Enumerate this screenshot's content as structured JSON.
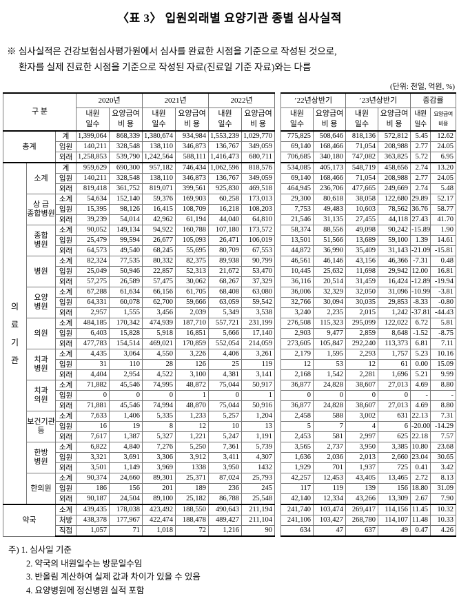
{
  "title": "〈표 3〉 입원외래별 요양기관 종별 심사실적",
  "note": {
    "line1": "※ 심사실적은 건강보험심사평가원에서 심사를 완료한 시점을 기준으로 작성된 것으로,",
    "line2": "환자를 실제 진료한 시점을 기준으로 작성된 자료(진료일 기준 자료)와는 다름"
  },
  "unit": "(단위: 천일, 억원, %)",
  "table": {
    "header": {
      "gubun": "구 분",
      "groups": [
        "2020년",
        "2021년",
        "2022년",
        "’22년상반기",
        "’23년상반기",
        "증감률"
      ],
      "sub_visit": "내원\n일수",
      "sub_cost": "요양급여\n비  용",
      "sub_visit_narrow": "내원\n일수",
      "sub_cost_narrow": "요양급여\n비용"
    },
    "mega_label": "의료기관",
    "groups": [
      {
        "name": "총계",
        "wide": true,
        "rows": [
          {
            "t": "계",
            "v": [
              "1,399,064",
              "868,339",
              "1,380,674",
              "934,984",
              "1,553,239",
              "1,029,770",
              "775,825",
              "508,646",
              "818,136",
              "572,812",
              "5.45",
              "12.62"
            ]
          },
          {
            "t": "입원",
            "v": [
              "140,211",
              "328,548",
              "138,110",
              "346,873",
              "136,767",
              "349,059",
              "69,140",
              "168,466",
              "71,054",
              "208,988",
              "2.77",
              "24.05"
            ]
          },
          {
            "t": "외래",
            "v": [
              "1,258,853",
              "539,790",
              "1,242,564",
              "588,111",
              "1,416,473",
              "680,711",
              "706,685",
              "340,180",
              "747,082",
              "363,825",
              "5.72",
              "6.95"
            ]
          }
        ]
      },
      {
        "name": "소계",
        "mega_start": true,
        "sec": true,
        "rows": [
          {
            "t": "계",
            "v": [
              "959,629",
              "690,300",
              "957,182",
              "746,434",
              "1,062,596",
              "818,576",
              "534,085",
              "405,173",
              "548,719",
              "458,656",
              "2.74",
              "13.20"
            ]
          },
          {
            "t": "입원",
            "v": [
              "140,211",
              "328,548",
              "138,110",
              "346,873",
              "136,767",
              "349,059",
              "69,140",
              "168,466",
              "71,054",
              "208,988",
              "2.77",
              "24.05"
            ]
          },
          {
            "t": "외래",
            "v": [
              "819,418",
              "361,752",
              "819,071",
              "399,561",
              "925,830",
              "469,518",
              "464,945",
              "236,706",
              "477,665",
              "249,669",
              "2.74",
              "5.48"
            ]
          }
        ]
      },
      {
        "name": "상 급\n종합병원",
        "rows": [
          {
            "t": "소계",
            "v": [
              "54,634",
              "152,140",
              "59,376",
              "169,903",
              "60,258",
              "173,013",
              "29,300",
              "80,618",
              "38,058",
              "122,680",
              "29.89",
              "52.17"
            ]
          },
          {
            "t": "입원",
            "v": [
              "15,395",
              "98,126",
              "16,415",
              "108,709",
              "16,218",
              "108,203",
              "7,753",
              "49,483",
              "10,603",
              "78,562",
              "36.76",
              "58.77"
            ]
          },
          {
            "t": "외래",
            "v": [
              "39,239",
              "54,014",
              "42,962",
              "61,194",
              "44,040",
              "64,810",
              "21,546",
              "31,135",
              "27,455",
              "44,118",
              "27.43",
              "41.70"
            ]
          }
        ]
      },
      {
        "name": "종합\n병원",
        "rows": [
          {
            "t": "소계",
            "v": [
              "90,052",
              "149,134",
              "94,922",
              "160,788",
              "107,180",
              "173,572",
              "58,374",
              "88,556",
              "49,098",
              "90,242",
              "-15.89",
              "1.90"
            ]
          },
          {
            "t": "입원",
            "v": [
              "25,479",
              "99,594",
              "26,677",
              "105,093",
              "26,471",
              "106,019",
              "13,501",
              "51,566",
              "13,689",
              "59,100",
              "1.39",
              "14.61"
            ]
          },
          {
            "t": "외래",
            "v": [
              "64,573",
              "49,540",
              "68,245",
              "55,695",
              "80,709",
              "67,553",
              "44,872",
              "36,990",
              "35,409",
              "31,143",
              "-21.09",
              "-15.81"
            ]
          }
        ]
      },
      {
        "name": "병원",
        "rows": [
          {
            "t": "소계",
            "v": [
              "82,324",
              "77,535",
              "80,332",
              "82,375",
              "89,938",
              "90,799",
              "46,561",
              "46,146",
              "43,156",
              "46,366",
              "-7.31",
              "0.48"
            ]
          },
          {
            "t": "입원",
            "v": [
              "25,049",
              "50,946",
              "22,857",
              "52,313",
              "21,672",
              "53,470",
              "10,445",
              "25,632",
              "11,698",
              "29,942",
              "12.00",
              "16.81"
            ]
          },
          {
            "t": "외래",
            "v": [
              "57,275",
              "26,589",
              "57,475",
              "30,062",
              "68,267",
              "37,329",
              "36,116",
              "20,514",
              "31,459",
              "16,424",
              "-12.89",
              "-19.94"
            ]
          }
        ]
      },
      {
        "name": "요양\n병원",
        "rows": [
          {
            "t": "소계",
            "v": [
              "67,288",
              "61,634",
              "66,156",
              "61,705",
              "68,408",
              "63,080",
              "36,006",
              "32,329",
              "32,050",
              "31,096",
              "-10.99",
              "-3.81"
            ]
          },
          {
            "t": "입원",
            "v": [
              "64,331",
              "60,078",
              "62,700",
              "59,666",
              "63,059",
              "59,542",
              "32,766",
              "30,094",
              "30,035",
              "29,853",
              "-8.33",
              "-0.80"
            ]
          },
          {
            "t": "외래",
            "v": [
              "2,957",
              "1,555",
              "3,456",
              "2,039",
              "5,349",
              "3,538",
              "3,240",
              "2,235",
              "2,015",
              "1,242",
              "-37.81",
              "-44.43"
            ]
          }
        ]
      },
      {
        "name": "의원",
        "rows": [
          {
            "t": "소계",
            "v": [
              "484,185",
              "170,342",
              "474,939",
              "187,710",
              "557,721",
              "231,199",
              "276,508",
              "115,323",
              "295,099",
              "122,022",
              "6.72",
              "5.81"
            ]
          },
          {
            "t": "입원",
            "v": [
              "6,403",
              "15,828",
              "5,918",
              "16,851",
              "5,666",
              "17,140",
              "2,903",
              "9,477",
              "2,859",
              "8,648",
              "-1.52",
              "-8.75"
            ]
          },
          {
            "t": "외래",
            "v": [
              "477,783",
              "154,514",
              "469,021",
              "170,859",
              "552,054",
              "214,059",
              "273,605",
              "105,847",
              "292,240",
              "113,373",
              "6.81",
              "7.11"
            ]
          }
        ]
      },
      {
        "name": "치과\n병원",
        "rows": [
          {
            "t": "소계",
            "v": [
              "4,435",
              "3,064",
              "4,550",
              "3,226",
              "4,406",
              "3,261",
              "2,179",
              "1,595",
              "2,293",
              "1,757",
              "5.23",
              "10.16"
            ]
          },
          {
            "t": "입원",
            "v": [
              "31",
              "110",
              "28",
              "126",
              "25",
              "119",
              "12",
              "53",
              "12",
              "61",
              "0.00",
              "15.09"
            ]
          },
          {
            "t": "외래",
            "v": [
              "4,404",
              "2,954",
              "4,522",
              "3,100",
              "4,381",
              "3,141",
              "2,168",
              "1,542",
              "2,281",
              "1,696",
              "5.21",
              "9.99"
            ]
          }
        ]
      },
      {
        "name": "치과\n의원",
        "rows": [
          {
            "t": "소계",
            "v": [
              "71,882",
              "45,546",
              "74,995",
              "48,872",
              "75,044",
              "50,917",
              "36,877",
              "24,828",
              "38,607",
              "27,013",
              "4.69",
              "8.80"
            ]
          },
          {
            "t": "입원",
            "v": [
              "0",
              "0",
              "0",
              "1",
              "0",
              "1",
              "0",
              "0",
              "0",
              "0",
              "-",
              "-"
            ]
          },
          {
            "t": "외래",
            "v": [
              "71,881",
              "45,546",
              "74,994",
              "48,870",
              "75,044",
              "50,916",
              "36,877",
              "24,828",
              "38,607",
              "27,013",
              "4.69",
              "8.80"
            ]
          }
        ]
      },
      {
        "name": "보건기관\n등",
        "rows": [
          {
            "t": "소계",
            "v": [
              "7,633",
              "1,406",
              "5,335",
              "1,233",
              "5,257",
              "1,204",
              "2,458",
              "588",
              "3,002",
              "631",
              "22.13",
              "7.31"
            ]
          },
          {
            "t": "입원",
            "v": [
              "16",
              "19",
              "8",
              "12",
              "10",
              "13",
              "5",
              "7",
              "4",
              "6",
              "-20.00",
              "-14.29"
            ]
          },
          {
            "t": "외래",
            "v": [
              "7,617",
              "1,387",
              "5,327",
              "1,221",
              "5,247",
              "1,191",
              "2,453",
              "581",
              "2,997",
              "625",
              "22.18",
              "7.57"
            ]
          }
        ]
      },
      {
        "name": "한방\n병원",
        "rows": [
          {
            "t": "소계",
            "v": [
              "6,822",
              "4,840",
              "7,276",
              "5,250",
              "7,361",
              "5,739",
              "3,565",
              "2,737",
              "3,950",
              "3,385",
              "10.80",
              "23.68"
            ]
          },
          {
            "t": "입원",
            "v": [
              "3,321",
              "3,691",
              "3,306",
              "3,912",
              "3,411",
              "4,307",
              "1,636",
              "2,036",
              "2,013",
              "2,660",
              "23.04",
              "30.65"
            ]
          },
          {
            "t": "외래",
            "v": [
              "3,501",
              "1,149",
              "3,969",
              "1338",
              "3,950",
              "1432",
              "1,929",
              "701",
              "1,937",
              "725",
              "0.41",
              "3.42"
            ]
          }
        ]
      },
      {
        "name": "한의원",
        "rows": [
          {
            "t": "소계",
            "v": [
              "90,374",
              "24,660",
              "89,301",
              "25,371",
              "87,024",
              "25,793",
              "42,257",
              "12,453",
              "43,405",
              "13,465",
              "2.72",
              "8.13"
            ]
          },
          {
            "t": "입원",
            "v": [
              "186",
              "156",
              "201",
              "189",
              "236",
              "245",
              "117",
              "119",
              "139",
              "156",
              "18.80",
              "31.09"
            ]
          },
          {
            "t": "외래",
            "v": [
              "90,187",
              "24,504",
              "89,100",
              "25,182",
              "86,788",
              "25,548",
              "42,140",
              "12,334",
              "43,266",
              "13,309",
              "2.67",
              "7.90"
            ]
          }
        ]
      },
      {
        "name": "약국",
        "wide": true,
        "sec": true,
        "rows": [
          {
            "t": "소계",
            "v": [
              "439,435",
              "178,038",
              "423,492",
              "188,550",
              "490,643",
              "211,194",
              "241,740",
              "103,474",
              "269,417",
              "114,156",
              "11.45",
              "10.32"
            ]
          },
          {
            "t": "처방",
            "v": [
              "438,378",
              "177,967",
              "422,474",
              "188,478",
              "489,427",
              "211,104",
              "241,106",
              "103,427",
              "268,780",
              "114,107",
              "11.48",
              "10.33"
            ]
          },
          {
            "t": "직접",
            "v": [
              "1,057",
              "71",
              "1,018",
              "72",
              "1,216",
              "90",
              "634",
              "47",
              "637",
              "49",
              "0.47",
              "4.26"
            ]
          }
        ]
      }
    ]
  },
  "footnotes": {
    "prefix": "주)",
    "items": [
      "1. 심사일 기준",
      "2. 약국의 내원일수는 방문일수임",
      "3. 반올림 계산하여 실제 값과 차이가 있을 수 있음",
      "4. 요양병원에 정신병원 실적 포함"
    ]
  }
}
